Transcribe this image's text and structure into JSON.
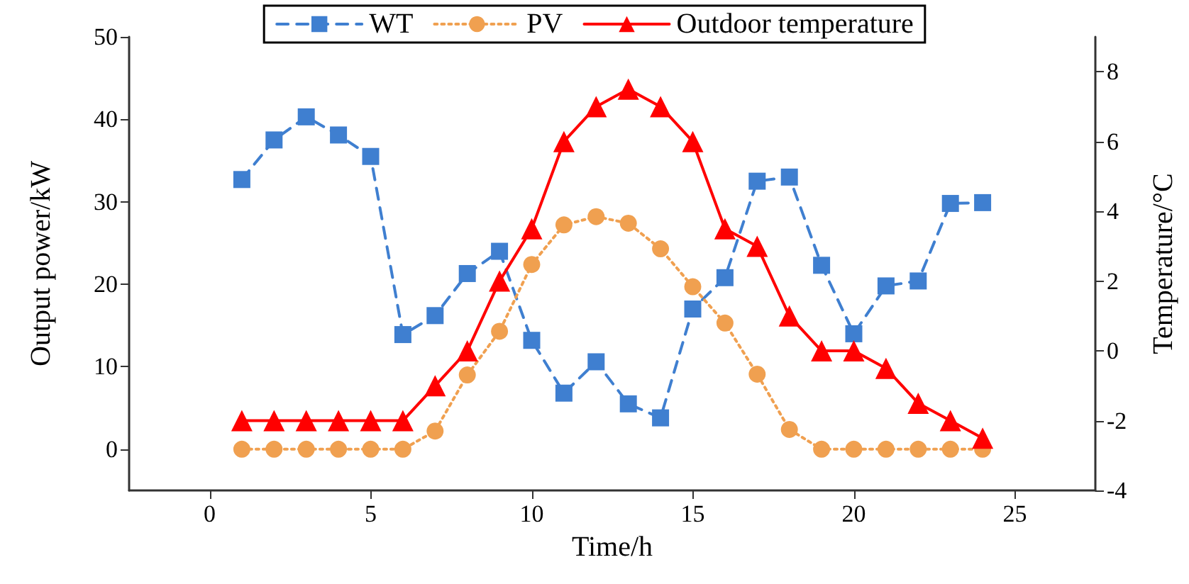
{
  "chart_data": {
    "type": "line",
    "xlabel": "Time/h",
    "ylabel": "Output power/kW",
    "y2label": "Temperature/°C",
    "x": [
      1,
      2,
      3,
      4,
      5,
      6,
      7,
      8,
      9,
      10,
      11,
      12,
      13,
      14,
      15,
      16,
      17,
      18,
      19,
      20,
      21,
      22,
      23,
      24
    ],
    "xlim": [
      -2.5,
      27.5
    ],
    "xticks": [
      0,
      5,
      10,
      15,
      20,
      25
    ],
    "ylim": [
      -5,
      50
    ],
    "yticks": [
      0,
      10,
      20,
      30,
      40,
      50
    ],
    "y2lim": [
      -4,
      9
    ],
    "y2ticks": [
      -4,
      -2,
      0,
      2,
      4,
      6,
      8
    ],
    "grid": false,
    "legend": "top",
    "series": [
      {
        "name": "WT",
        "color": "#3f7fd0",
        "marker": "square",
        "line_style": "dashed",
        "values": [
          32.7,
          37.5,
          40.3,
          38.1,
          35.5,
          13.9,
          16.2,
          21.3,
          24,
          13.2,
          6.8,
          10.6,
          5.5,
          3.8,
          17,
          20.8,
          32.5,
          33,
          22.3,
          14,
          19.8,
          20.4,
          29.8,
          29.9
        ]
      },
      {
        "name": "PV",
        "color": "#f0a050",
        "marker": "circle",
        "line_style": "dotted",
        "values": [
          0,
          0,
          0,
          0,
          0,
          0,
          2.2,
          9,
          14.3,
          22.4,
          27.2,
          28.2,
          27.4,
          24.3,
          19.7,
          15.3,
          9.1,
          2.4,
          0,
          0,
          0,
          0,
          0,
          0
        ]
      },
      {
        "name": "Outdoor temperature",
        "color": "#ff0000",
        "marker": "triangle",
        "line_style": "solid",
        "axis": "y2",
        "values": [
          -2,
          -2,
          -2,
          -2,
          -2,
          -2,
          -1,
          0,
          2,
          3.5,
          6,
          7,
          7.5,
          7,
          6,
          3.5,
          3,
          1,
          0,
          0,
          -0.5,
          -1.5,
          -2,
          -2.5
        ]
      }
    ]
  }
}
